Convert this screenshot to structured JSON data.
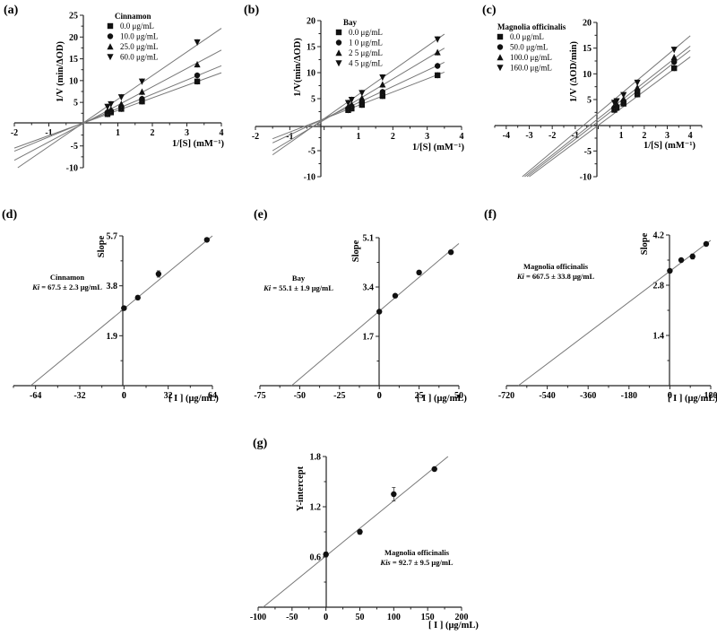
{
  "figure": {
    "panels": [
      "(a)",
      "(b)",
      "(c)",
      "(d)",
      "(e)",
      "(f)",
      "(g)"
    ]
  },
  "chart_data": [
    {
      "id": "a",
      "panel_label": "(a)",
      "type": "line",
      "subtype": "Lineweaver-Burk double reciprocal plot",
      "title": "",
      "xlabel": "1/[S] (mM⁻¹)",
      "ylabel": "1/V (min/ΔOD)",
      "xlim": [
        -2,
        4
      ],
      "ylim": [
        -10,
        25
      ],
      "xticks": [
        -2,
        -1,
        1,
        2,
        3,
        4
      ],
      "yticks": [
        -10,
        -5,
        5,
        10,
        15,
        20,
        25
      ],
      "legend_title": "Cinnamon",
      "legend_position": "upper center",
      "x": [
        0.7,
        0.8,
        1.1,
        1.7,
        3.3
      ],
      "series": [
        {
          "name": "0.0  μg/mL",
          "marker": "square",
          "values": [
            2.3,
            2.7,
            3.5,
            5.2,
            9.8
          ]
        },
        {
          "name": "10.0 μg/mL",
          "marker": "circle",
          "values": [
            2.7,
            3.0,
            4.0,
            5.8,
            11.2
          ]
        },
        {
          "name": "25.0 μg/mL",
          "marker": "triangle-up",
          "values": [
            3.0,
            3.4,
            4.6,
            7.4,
            13.7
          ]
        },
        {
          "name": "60.0 μg/mL",
          "marker": "triangle-down",
          "values": [
            4.0,
            4.6,
            6.2,
            9.8,
            18.8
          ]
        }
      ],
      "fit_lines": [
        {
          "x0": -2.0,
          "y0": -5.5,
          "x1": 4.0,
          "y1": 11.8
        },
        {
          "x0": -2.0,
          "y0": -6.2,
          "x1": 4.0,
          "y1": 13.4
        },
        {
          "x0": -2.0,
          "y0": -8.3,
          "x1": 4.0,
          "y1": 17.0
        },
        {
          "x0": -1.9,
          "y0": -10.0,
          "x1": 4.0,
          "y1": 22.0
        }
      ]
    },
    {
      "id": "b",
      "panel_label": "(b)",
      "type": "line",
      "subtype": "Lineweaver-Burk double reciprocal plot",
      "xlabel": "1/[S] (mM⁻¹)",
      "ylabel": "1/V(min/ΔOD)",
      "xlim": [
        -2,
        4
      ],
      "ylim": [
        -10,
        20
      ],
      "xticks": [
        -2,
        -1,
        1,
        2,
        3,
        4
      ],
      "yticks": [
        -10,
        -5,
        5,
        10,
        15,
        20
      ],
      "legend_title": "Bay",
      "legend_position": "upper center",
      "x": [
        0.7,
        0.8,
        1.1,
        1.7,
        3.3
      ],
      "series": [
        {
          "name": "0.0 μg/mL",
          "marker": "square",
          "values": [
            2.8,
            3.1,
            3.8,
            5.5,
            9.5
          ]
        },
        {
          "name": "1 0 μg/mL",
          "marker": "circle",
          "values": [
            3.1,
            3.5,
            4.3,
            6.3,
            11.3
          ]
        },
        {
          "name": "2 5 μg/mL",
          "marker": "triangle-up",
          "values": [
            3.5,
            3.9,
            5.1,
            7.7,
            13.9
          ]
        },
        {
          "name": "4 5 μg/mL",
          "marker": "triangle-down",
          "values": [
            4.2,
            4.8,
            6.1,
            9.1,
            16.4
          ]
        }
      ],
      "fit_lines": [
        {
          "x0": -1.5,
          "y0": -2.7,
          "x1": 3.5,
          "y1": 10.1
        },
        {
          "x0": -1.5,
          "y0": -3.5,
          "x1": 3.5,
          "y1": 12.0
        },
        {
          "x0": -1.5,
          "y0": -5.0,
          "x1": 3.5,
          "y1": 14.7
        },
        {
          "x0": -1.5,
          "y0": -5.8,
          "x1": 3.5,
          "y1": 17.4
        }
      ]
    },
    {
      "id": "c",
      "panel_label": "(c)",
      "type": "line",
      "subtype": "Lineweaver-Burk double reciprocal plot",
      "xlabel": "1/[S] (mM⁻¹)",
      "ylabel": "1/V (ΔOD/min)",
      "xlim": [
        -4.5,
        4.5
      ],
      "ylim": [
        -10,
        20
      ],
      "xticks": [
        -4,
        -3,
        -2,
        -1,
        1,
        2,
        3,
        4
      ],
      "yticks": [
        -10,
        -5,
        5,
        10,
        15,
        20
      ],
      "legend_title": "Magnolia officinalis",
      "legend_position": "upper left",
      "x": [
        0.7,
        0.8,
        1.1,
        1.7,
        3.3
      ],
      "series": [
        {
          "name": "0.0    μg/mL",
          "marker": "square",
          "values": [
            3.0,
            3.4,
            4.2,
            6.0,
            11.1
          ]
        },
        {
          "name": "50.0  μg/mL",
          "marker": "circle",
          "values": [
            3.4,
            3.7,
            4.7,
            6.6,
            12.3
          ]
        },
        {
          "name": "100.0 μg/mL",
          "marker": "triangle-up",
          "values": [
            3.8,
            4.1,
            5.1,
            7.3,
            13.2
          ]
        },
        {
          "name": "160.0 μg/mL",
          "marker": "triangle-down",
          "values": [
            4.4,
            4.7,
            5.9,
            8.3,
            14.7
          ]
        }
      ],
      "fit_lines": [
        {
          "x0": -3.0,
          "y0": -10.0,
          "x1": 4.0,
          "y1": 13.3
        },
        {
          "x0": -3.1,
          "y0": -10.0,
          "x1": 4.0,
          "y1": 14.6
        },
        {
          "x0": -3.2,
          "y0": -10.0,
          "x1": 4.0,
          "y1": 15.4
        },
        {
          "x0": -3.3,
          "y0": -10.0,
          "x1": 4.0,
          "y1": 17.4
        }
      ]
    },
    {
      "id": "d",
      "panel_label": "(d)",
      "type": "scatter",
      "subtype": "secondary plot, slope vs [I]",
      "xlabel": "[ I ] (μg/mL)",
      "ylabel": "Slope",
      "xlim": [
        -80,
        64
      ],
      "ylim": [
        0,
        5.7
      ],
      "xticks": [
        -64,
        -32,
        0,
        32,
        64
      ],
      "yticks": [
        1.9,
        3.8,
        5.7
      ],
      "annotation": {
        "name": "Cinnamon",
        "k_label": "Ki",
        "k_value": " = 67.5 ± 2.3 μg/mL"
      },
      "x": [
        0,
        10,
        25,
        60
      ],
      "values": [
        2.95,
        3.35,
        4.25,
        5.55
      ],
      "errors": [
        0,
        0,
        0.12,
        0
      ],
      "fit_line": {
        "x0": -67.5,
        "y0": 0,
        "x1": 64,
        "y1": 5.7
      }
    },
    {
      "id": "e",
      "panel_label": "(e)",
      "type": "scatter",
      "subtype": "secondary plot, slope vs [I]",
      "xlabel": "[ I ] (μg/mL)",
      "ylabel": "Slope",
      "xlim": [
        -75,
        50
      ],
      "ylim": [
        0,
        5.1
      ],
      "xticks": [
        -75,
        -50,
        -25,
        0,
        25,
        50
      ],
      "yticks": [
        1.7,
        3.4,
        5.1
      ],
      "annotation": {
        "name": "Bay",
        "k_label": "Ki",
        "k_value": " = 55.1 ± 1.9 μg/mL"
      },
      "x": [
        0,
        10,
        25,
        45
      ],
      "values": [
        2.55,
        3.1,
        3.9,
        4.6
      ],
      "errors": [
        0,
        0,
        0,
        0
      ],
      "fit_line": {
        "x0": -55.1,
        "y0": 0,
        "x1": 50,
        "y1": 4.9
      }
    },
    {
      "id": "f",
      "panel_label": "(f)",
      "type": "scatter",
      "subtype": "secondary plot, slope vs [I]",
      "xlabel": "[ I ] (μg/mL)",
      "ylabel": "Slope",
      "xlim": [
        -720,
        180
      ],
      "ylim": [
        0,
        4.2
      ],
      "xticks": [
        -720,
        -540,
        -360,
        -180,
        0,
        180
      ],
      "yticks": [
        1.4,
        2.8,
        4.2
      ],
      "annotation": {
        "name": "Magnolia officinalis",
        "k_label": "Ki",
        "k_value": " = 667.5 ± 33.8 μg/mL"
      },
      "x": [
        0,
        50,
        100,
        160
      ],
      "values": [
        3.2,
        3.5,
        3.6,
        3.95
      ],
      "errors": [
        0,
        0,
        0.07,
        0
      ],
      "fit_line": {
        "x0": -667.5,
        "y0": 0,
        "x1": 180,
        "y1": 4.05
      }
    },
    {
      "id": "g",
      "panel_label": "(g)",
      "type": "scatter",
      "subtype": "secondary plot, Y-intercept vs [I]",
      "xlabel": "[ I ] (μg/mL)",
      "ylabel": "Y-intercept",
      "xlim": [
        -100,
        200
      ],
      "ylim": [
        0,
        1.8
      ],
      "xticks": [
        -100,
        -50,
        0,
        50,
        100,
        150,
        200
      ],
      "yticks": [
        0.6,
        1.2,
        1.8
      ],
      "annotation": {
        "name": "Magnolia officinalis",
        "k_label": "Kis",
        "k_value": " = 92.7 ± 9.5 μg/mL"
      },
      "x": [
        0,
        50,
        100,
        160
      ],
      "values": [
        0.63,
        0.9,
        1.35,
        1.65
      ],
      "errors": [
        0.03,
        0.03,
        0.08,
        0
      ],
      "fit_line": {
        "x0": -92.7,
        "y0": 0,
        "x1": 180,
        "y1": 1.8
      }
    }
  ]
}
